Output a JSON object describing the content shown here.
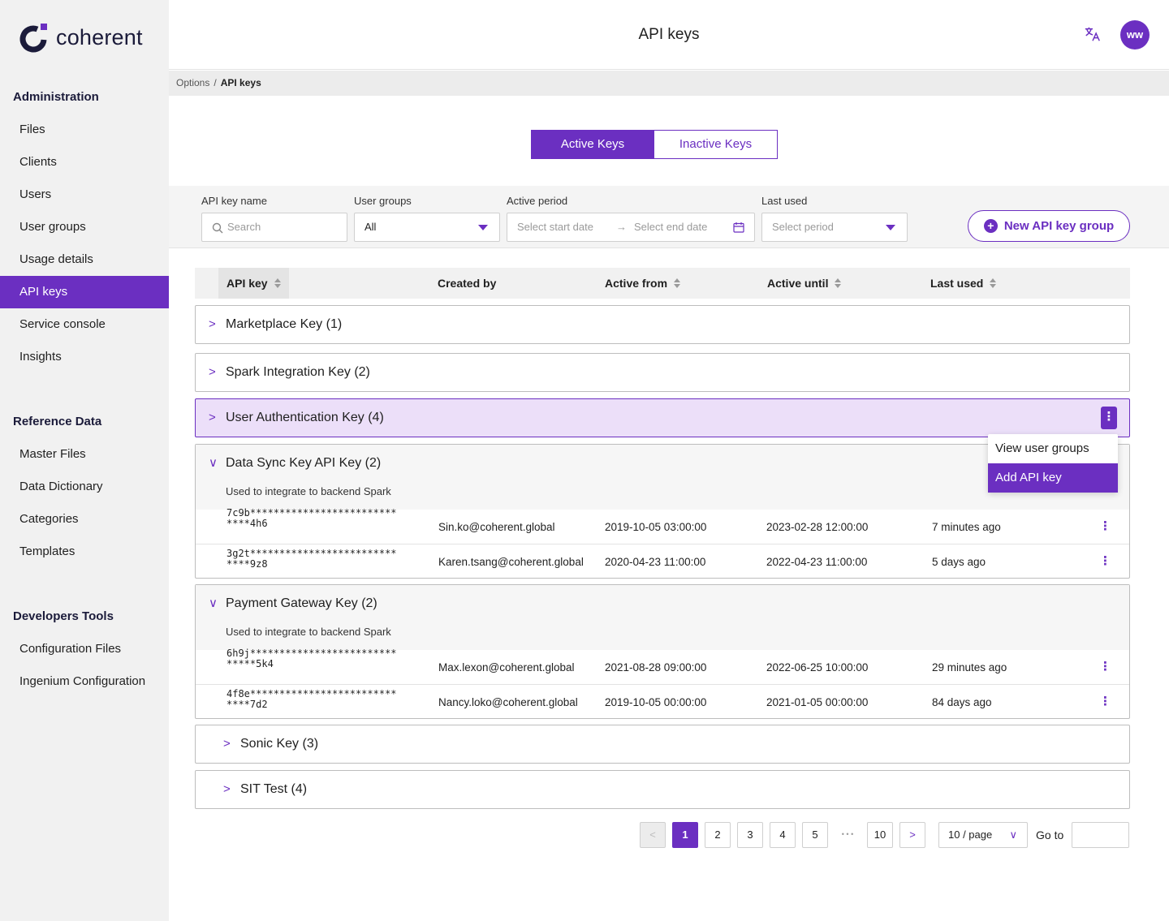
{
  "app": {
    "brand": "coherent",
    "title": "API keys",
    "avatar_initials": "ww",
    "accent": "#6b2fc1"
  },
  "sidebar": {
    "sections": [
      {
        "title": "Administration",
        "items": [
          "Files",
          "Clients",
          "Users",
          "User groups",
          "Usage details",
          "API keys",
          "Service console",
          "Insights"
        ]
      },
      {
        "title": "Reference Data",
        "items": [
          "Master Files",
          "Data Dictionary",
          "Categories",
          "Templates"
        ]
      },
      {
        "title": "Developers Tools",
        "items": [
          "Configuration  Files",
          "Ingenium Configuration"
        ]
      }
    ],
    "active_item": "API keys"
  },
  "breadcrumb": {
    "parent": "Options",
    "separator": "/",
    "current": "API keys"
  },
  "tabs": {
    "active": "Active Keys",
    "inactive": "Inactive Keys"
  },
  "filters": {
    "name_label": "API key name",
    "name_placeholder": "Search",
    "groups_label": "User groups",
    "groups_value": "All",
    "period_label": "Active period",
    "period_start": "Select start date",
    "period_end": "Select end date",
    "last_used_label": "Last used",
    "last_used_placeholder": "Select period",
    "new_group_button": "New API key group"
  },
  "table": {
    "columns": [
      "API key",
      "Created by",
      "Active from",
      "Active until",
      "Last used"
    ],
    "groups": [
      {
        "name": "Marketplace Key (1)",
        "expanded": false
      },
      {
        "name": "Spark Integration Key (2)",
        "expanded": false
      },
      {
        "name": "User Authentication Key (4)",
        "expanded": false,
        "highlighted": true
      },
      {
        "name": "Data Sync Key API Key (2)",
        "expanded": true,
        "description": "Used to integrate to backend Spark",
        "rows": [
          {
            "key": "7c9b*****************************4h6",
            "created_by": "Sin.ko@coherent.global",
            "active_from": "2019-10-05 03:00:00",
            "active_until": "2023-02-28 12:00:00",
            "last_used": "7 minutes ago"
          },
          {
            "key": "3g2t*****************************9z8",
            "created_by": "Karen.tsang@coherent.global",
            "active_from": "2020-04-23 11:00:00",
            "active_until": "2022-04-23 11:00:00",
            "last_used": "5 days ago"
          }
        ]
      },
      {
        "name": "Payment Gateway Key (2)",
        "expanded": true,
        "description": "Used to integrate to backend Spark",
        "rows": [
          {
            "key": "6h9j******************************5k4",
            "created_by": "Max.lexon@coherent.global",
            "active_from": "2021-08-28 09:00:00",
            "active_until": "2022-06-25 10:00:00",
            "last_used": "29 minutes ago"
          },
          {
            "key": "4f8e*****************************7d2",
            "created_by": "Nancy.loko@coherent.global",
            "active_from": "2019-10-05 00:00:00",
            "active_until": "2021-01-05 00:00:00",
            "last_used": "84 days ago"
          }
        ]
      },
      {
        "name": "Sonic Key (3)",
        "expanded": false
      },
      {
        "name": "SIT Test (4)",
        "expanded": false
      }
    ]
  },
  "context_menu": {
    "items": [
      "View user groups",
      "Add API key"
    ],
    "selected": "Add API key"
  },
  "pagination": {
    "pages": [
      "1",
      "2",
      "3",
      "4",
      "5"
    ],
    "ellipsis": "• • •",
    "last_page": "10",
    "current": "1",
    "page_size": "10 / page",
    "goto_label": "Go to"
  }
}
